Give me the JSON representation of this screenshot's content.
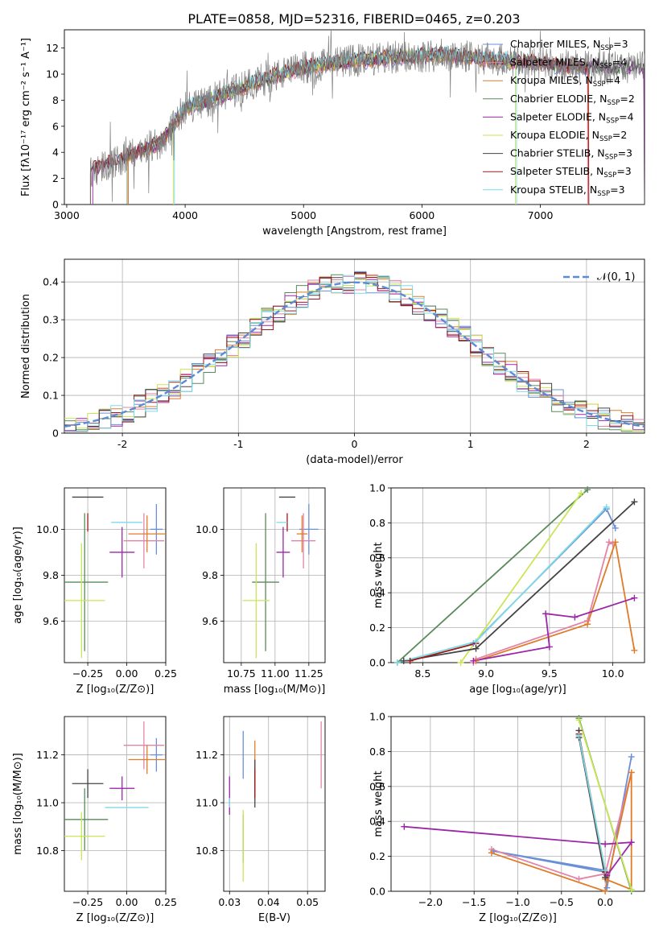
{
  "figure_title": "PLATE=0858, MJD=52316, FIBERID=0465, z=0.203",
  "models": [
    {
      "name": "Chabrier MILES",
      "nssp": "3",
      "color": "#6b8fd6"
    },
    {
      "name": "Salpeter MILES",
      "nssp": "4",
      "color": "#e384a7"
    },
    {
      "name": "Kroupa MILES",
      "nssp": "4",
      "color": "#e07b28"
    },
    {
      "name": "Chabrier ELODIE",
      "nssp": "2",
      "color": "#5a8a5a"
    },
    {
      "name": "Salpeter ELODIE",
      "nssp": "4",
      "color": "#9b27a8"
    },
    {
      "name": "Kroupa ELODIE",
      "nssp": "2",
      "color": "#c9e655"
    },
    {
      "name": "Chabrier STELIB",
      "nssp": "3",
      "color": "#444444"
    },
    {
      "name": "Salpeter STELIB",
      "nssp": "3",
      "color": "#9c1a1a"
    },
    {
      "name": "Kroupa STELIB",
      "nssp": "3",
      "color": "#7ddbe8"
    }
  ],
  "legend_suffix": "N",
  "legend_sub": "SSP",
  "chart_data": [
    {
      "id": "spectrum",
      "type": "line",
      "xlabel": "wavelength [Angstrom, rest frame]",
      "ylabel": "Flux [fλ10⁻¹⁷ erg cm⁻² s⁻¹ A⁻¹]",
      "xlim": [
        2980,
        7880
      ],
      "ylim": [
        0,
        13.4
      ],
      "xticks": [
        3000,
        4000,
        5000,
        6000,
        7000
      ],
      "yticks": [
        0,
        2,
        4,
        6,
        8,
        10,
        12
      ],
      "data_color": "#808080",
      "continuum": {
        "x": [
          3200,
          3500,
          3800,
          4000,
          4300,
          4600,
          5000,
          5400,
          5800,
          6200,
          6600,
          7000,
          7400
        ],
        "y": [
          2.6,
          3.6,
          4.8,
          7.4,
          8.3,
          9.4,
          10.5,
          11.0,
          11.3,
          11.5,
          11.1,
          10.8,
          10.5
        ]
      },
      "legend_loc": "right"
    },
    {
      "id": "residuals",
      "type": "histogram",
      "xlabel": "(data-model)/error",
      "ylabel": "Normed distribution",
      "xlim": [
        -2.5,
        2.5
      ],
      "ylim": [
        0,
        0.46
      ],
      "xticks": [
        -2,
        -1,
        0,
        1,
        2
      ],
      "yticks": [
        0.0,
        0.1,
        0.2,
        0.3,
        0.4
      ],
      "gaussian_label": "𝒩(0, 1)",
      "gaussian_color": "#5b8ad6",
      "bin_width": 0.1,
      "legend_loc": "top-right"
    },
    {
      "id": "age_vs_Z",
      "type": "errorbar",
      "xlabel": "Z [log₁₀(Z/Z⊙)]",
      "ylabel": "age  [log₁₀(age/yr)]",
      "xlim": [
        -0.4,
        0.25
      ],
      "ylim": [
        9.42,
        10.18
      ],
      "xticks": [
        -0.25,
        0.0,
        0.25
      ],
      "xticklabels": [
        "−0.25",
        "0.00",
        "0.25"
      ],
      "yticks": [
        9.6,
        9.8,
        10.0
      ],
      "yticklabels": [
        "9.6",
        "9.8",
        "10.0"
      ],
      "points": [
        {
          "m": 0,
          "x": 0.19,
          "y": 10.0,
          "xe": 0.04,
          "ye": 0.11
        },
        {
          "m": 1,
          "x": 0.11,
          "y": 9.95,
          "xe": 0.13,
          "ye": 0.12
        },
        {
          "m": 2,
          "x": 0.13,
          "y": 9.98,
          "xe": 0.12,
          "ye": 0.08
        },
        {
          "m": 3,
          "x": -0.27,
          "y": 9.77,
          "xe": 0.15,
          "ye": 0.3
        },
        {
          "m": 4,
          "x": -0.03,
          "y": 9.9,
          "xe": 0.08,
          "ye": 0.11
        },
        {
          "m": 5,
          "x": -0.29,
          "y": 9.69,
          "xe": 0.15,
          "ye": 0.25
        },
        {
          "m": 6,
          "x": -0.25,
          "y": 10.14,
          "xe": 0.1,
          "ye": 0.0
        },
        {
          "m": 7,
          "x": -0.25,
          "y": 10.03,
          "xe": 0.0,
          "ye": 0.04
        },
        {
          "m": 8,
          "x": 0.0,
          "y": 10.03,
          "xe": 0.1,
          "ye": 0.0
        }
      ]
    },
    {
      "id": "age_vs_mass",
      "type": "errorbar",
      "xlabel": "mass [log₁₀(M/M⊙)]",
      "ylabel": "",
      "xlim": [
        10.62,
        11.37
      ],
      "ylim": [
        9.42,
        10.18
      ],
      "xticks": [
        10.75,
        11.0,
        11.25
      ],
      "xticklabels": [
        "10.75",
        "11.00",
        "11.25"
      ],
      "yticks": [
        9.6,
        9.8,
        10.0
      ],
      "yticklabels": [
        "9.6",
        "9.8",
        "10.0"
      ],
      "points": [
        {
          "m": 0,
          "x": 11.25,
          "y": 10.0,
          "xe": 0.07,
          "ye": 0.11
        },
        {
          "m": 1,
          "x": 11.21,
          "y": 9.95,
          "xe": 0.09,
          "ye": 0.12
        },
        {
          "m": 2,
          "x": 11.2,
          "y": 9.98,
          "xe": 0.04,
          "ye": 0.08
        },
        {
          "m": 3,
          "x": 10.93,
          "y": 9.77,
          "xe": 0.1,
          "ye": 0.3
        },
        {
          "m": 4,
          "x": 11.06,
          "y": 9.9,
          "xe": 0.05,
          "ye": 0.11
        },
        {
          "m": 5,
          "x": 10.86,
          "y": 9.69,
          "xe": 0.1,
          "ye": 0.25
        },
        {
          "m": 6,
          "x": 11.09,
          "y": 10.14,
          "xe": 0.06,
          "ye": 0.0
        },
        {
          "m": 7,
          "x": 11.09,
          "y": 10.03,
          "xe": 0.0,
          "ye": 0.04
        },
        {
          "m": 8,
          "x": 11.05,
          "y": 10.03,
          "xe": 0.04,
          "ye": 0.0
        }
      ]
    },
    {
      "id": "weight_vs_age",
      "type": "line",
      "xlabel": "age  [log₁₀(age/yr)]",
      "ylabel": "mass weight",
      "xlim": [
        8.25,
        10.25
      ],
      "ylim": [
        0,
        1.0
      ],
      "xticks": [
        8.5,
        9.0,
        9.5,
        10.0
      ],
      "xticklabels": [
        "8.5",
        "9.0",
        "9.5",
        "10.0"
      ],
      "yticks": [
        0.0,
        0.2,
        0.4,
        0.6,
        0.8,
        1.0
      ],
      "yticklabels": [
        "0.0",
        "0.2",
        "0.4",
        "0.6",
        "0.8",
        "1.0"
      ],
      "series": [
        {
          "m": 0,
          "x": [
            8.9,
            9.95,
            10.02
          ],
          "y": [
            0.11,
            0.88,
            0.77
          ]
        },
        {
          "m": 1,
          "x": 8.9,
          "y": 0
        },
        {
          "m": 1,
          "x": [
            8.92,
            9.8,
            9.97,
            10.0
          ],
          "y": [
            0.02,
            0.24,
            0.69,
            0.68
          ]
        },
        {
          "m": 2,
          "x": [
            8.92,
            9.8,
            10.02,
            10.17
          ],
          "y": [
            0.01,
            0.22,
            0.69,
            0.07
          ]
        },
        {
          "m": 3,
          "x": [
            8.3,
            9.8
          ],
          "y": [
            0.0,
            0.99
          ]
        },
        {
          "m": 4,
          "x": [
            8.9,
            9.5,
            9.47,
            9.7,
            10.17
          ],
          "y": [
            0.01,
            0.09,
            0.28,
            0.26,
            0.37
          ]
        },
        {
          "m": 5,
          "x": [
            8.8,
            9.75
          ],
          "y": [
            0.0,
            0.97
          ]
        },
        {
          "m": 6,
          "x": [
            8.35,
            8.92,
            10.17
          ],
          "y": [
            0.01,
            0.08,
            0.92
          ]
        },
        {
          "m": 7,
          "x": [
            8.4,
            8.92
          ],
          "y": [
            0.01,
            0.11
          ]
        },
        {
          "m": 8,
          "x": [
            8.3,
            8.92,
            9.95
          ],
          "y": [
            0.0,
            0.12,
            0.89
          ]
        }
      ]
    },
    {
      "id": "mass_vs_Z",
      "type": "errorbar",
      "xlabel": "Z [log₁₀(Z/Z⊙)]",
      "ylabel": "mass [log₁₀(M/M⊙)]",
      "xlim": [
        -0.4,
        0.25
      ],
      "ylim": [
        10.63,
        11.36
      ],
      "xticks": [
        -0.25,
        0.0,
        0.25
      ],
      "xticklabels": [
        "−0.25",
        "0.00",
        "0.25"
      ],
      "yticks": [
        10.8,
        11.0,
        11.2
      ],
      "yticklabels": [
        "10.8",
        "11.0",
        "11.2"
      ],
      "points": [
        {
          "m": 0,
          "x": 0.19,
          "y": 11.2,
          "xe": 0.04,
          "ye": 0.07
        },
        {
          "m": 1,
          "x": 0.11,
          "y": 11.24,
          "xe": 0.13,
          "ye": 0.1
        },
        {
          "m": 2,
          "x": 0.13,
          "y": 11.18,
          "xe": 0.12,
          "ye": 0.06
        },
        {
          "m": 3,
          "x": -0.27,
          "y": 10.93,
          "xe": 0.15,
          "ye": 0.13
        },
        {
          "m": 4,
          "x": -0.03,
          "y": 11.06,
          "xe": 0.08,
          "ye": 0.05
        },
        {
          "m": 5,
          "x": -0.29,
          "y": 10.86,
          "xe": 0.15,
          "ye": 0.1
        },
        {
          "m": 6,
          "x": -0.25,
          "y": 11.08,
          "xe": 0.1,
          "ye": 0.06
        },
        {
          "m": 7,
          "x": -0.25,
          "y": 11.09,
          "xe": 0.0,
          "ye": 0.0
        },
        {
          "m": 8,
          "x": 0.0,
          "y": 10.98,
          "xe": 0.14,
          "ye": 0.0
        }
      ]
    },
    {
      "id": "mass_vs_ebv",
      "type": "errorbar",
      "xlabel": "E(B-V)",
      "ylabel": "",
      "xlim": [
        0.0285,
        0.0545
      ],
      "ylim": [
        10.63,
        11.36
      ],
      "xticks": [
        0.03,
        0.04,
        0.05
      ],
      "xticklabels": [
        "0.03",
        "0.04",
        "0.05"
      ],
      "yticks": [
        10.8,
        11.0,
        11.2
      ],
      "yticklabels": [
        "10.8",
        "11.0",
        "11.2"
      ],
      "points": [
        {
          "m": 0,
          "x": 0.0335,
          "y": 11.2,
          "xe": 0.0,
          "ye": 0.1
        },
        {
          "m": 1,
          "x": 0.0535,
          "y": 11.2,
          "xe": 0.0,
          "ye": 0.14
        },
        {
          "m": 2,
          "x": 0.0365,
          "y": 11.16,
          "xe": 0.0,
          "ye": 0.1
        },
        {
          "m": 3,
          "x": 0.0335,
          "y": 10.85,
          "xe": 0.0,
          "ye": 0.1
        },
        {
          "m": 4,
          "x": 0.03,
          "y": 11.03,
          "xe": 0.0,
          "ye": 0.08
        },
        {
          "m": 5,
          "x": 0.0335,
          "y": 10.82,
          "xe": 0.0,
          "ye": 0.15
        },
        {
          "m": 6,
          "x": 0.0365,
          "y": 11.08,
          "xe": 0.0,
          "ye": 0.1
        },
        {
          "m": 7,
          "x": 0.0365,
          "y": 11.08,
          "xe": 0.0,
          "ye": 0.06
        },
        {
          "m": 8,
          "x": 0.03,
          "y": 11.0,
          "xe": 0.0,
          "ye": 0.02
        }
      ]
    },
    {
      "id": "weight_vs_Z",
      "type": "line",
      "xlabel": "Z [log₁₀(Z/Z⊙)]",
      "ylabel": "mass weight",
      "xlim": [
        -2.45,
        0.45
      ],
      "ylim": [
        0,
        1.0
      ],
      "xticks": [
        -2.0,
        -1.5,
        -1.0,
        -0.5,
        0.0
      ],
      "xticklabels": [
        "−2.0",
        "−1.5",
        "−1.0",
        "−0.5",
        "0.0"
      ],
      "yticks": [
        0.0,
        0.2,
        0.4,
        0.6,
        0.8,
        1.0
      ],
      "yticklabels": [
        "0.0",
        "0.2",
        "0.4",
        "0.6",
        "0.8",
        "1.0"
      ],
      "series": [
        {
          "m": 0,
          "x": [
            0.0,
            -1.28,
            0.0,
            0.02,
            0.3
          ],
          "y": [
            0.11,
            0.23,
            0.12,
            0.02,
            0.77
          ]
        },
        {
          "m": 1,
          "x": [
            -1.3,
            -0.3,
            0.0,
            0.3
          ],
          "y": [
            0.24,
            0.07,
            0.1,
            0.68
          ]
        },
        {
          "m": 2,
          "x": [
            -1.3,
            0.0,
            0.3,
            0.3,
            0.0
          ],
          "y": [
            0.22,
            0.0,
            0.68,
            0.01,
            0.07
          ]
        },
        {
          "m": 3,
          "x": [
            -0.3,
            0.3
          ],
          "y": [
            0.99,
            0.0
          ]
        },
        {
          "m": 4,
          "x": [
            -2.3,
            0.0,
            0.3,
            0.02
          ],
          "y": [
            0.37,
            0.27,
            0.28,
            0.09
          ]
        },
        {
          "m": 5,
          "x": [
            -0.3,
            0.3
          ],
          "y": [
            0.98,
            0.01
          ]
        },
        {
          "m": 6,
          "x": [
            -0.3,
            -0.3,
            0.0
          ],
          "y": [
            0.92,
            0.88,
            0.08
          ]
        },
        {
          "m": 7,
          "x": [
            -0.3,
            0.0
          ],
          "y": [
            0.9,
            0.11
          ]
        },
        {
          "m": 8,
          "x": [
            -0.3,
            0.0
          ],
          "y": [
            0.89,
            0.12
          ]
        }
      ]
    }
  ]
}
